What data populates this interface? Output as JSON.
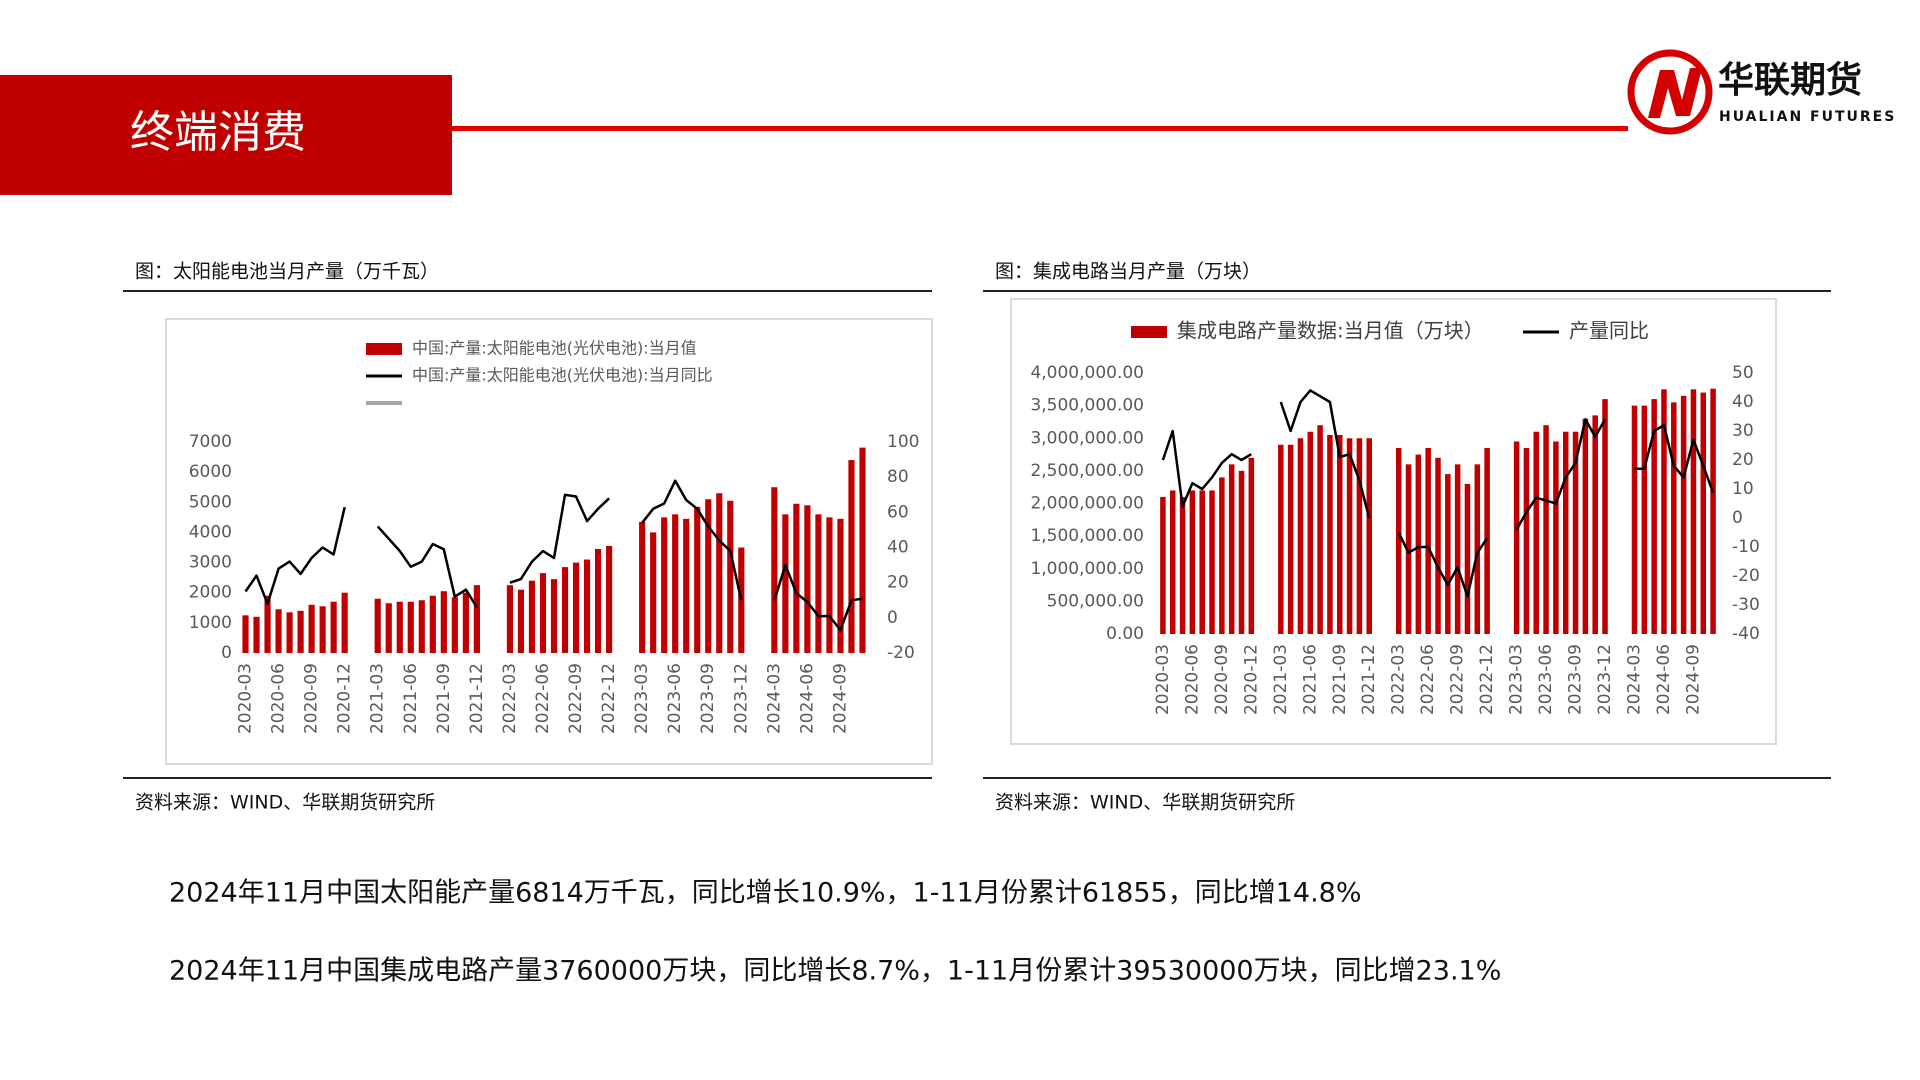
{
  "header": {
    "title": "终端消费",
    "logo_name": "华联期货",
    "logo_sub": "HUALIAN FUTURES"
  },
  "notes": [
    "2024年11月中国太阳能产量6814万千瓦，同比增长10.9%，1-11月份累计61855，同比增14.8%",
    "2024年11月中国集成电路产量3760000万块，同比增长8.7%，1-11月份累计39530000万块，同比增23.1%"
  ],
  "chart_data": [
    {
      "type": "combo",
      "title": "图：太阳能电池当月产量（万千瓦）",
      "source": "资料来源：WIND、华联期货研究所",
      "categories": [
        "2020-03",
        null,
        null,
        "2020-06",
        null,
        null,
        "2020-09",
        null,
        null,
        "2020-12",
        null,
        null,
        "2021-03",
        null,
        null,
        "2021-06",
        null,
        null,
        "2021-09",
        null,
        null,
        "2021-12",
        null,
        null,
        "2022-03",
        null,
        null,
        "2022-06",
        null,
        null,
        "2022-09",
        null,
        null,
        "2022-12",
        null,
        null,
        "2023-03",
        null,
        null,
        "2023-06",
        null,
        null,
        "2023-09",
        null,
        null,
        "2023-12",
        null,
        null,
        "2024-03",
        null,
        null,
        "2024-06",
        null,
        null,
        "2024-09",
        null,
        null
      ],
      "series": [
        {
          "name": "中国:产量:太阳能电池(光伏电池):当月值",
          "color": "#c00000",
          "type": "bar",
          "values": [
            1250,
            1200,
            1900,
            1450,
            1350,
            1400,
            1600,
            1550,
            1700,
            2000,
            null,
            null,
            1800,
            1650,
            1700,
            1700,
            1750,
            1900,
            2050,
            1850,
            2000,
            2250,
            null,
            null,
            2250,
            2100,
            2400,
            2650,
            2450,
            2850,
            3000,
            3100,
            3450,
            3550,
            null,
            null,
            4350,
            4000,
            4500,
            4600,
            4450,
            4850,
            5100,
            5300,
            5050,
            3500,
            null,
            null,
            5500,
            4600,
            4950,
            4900,
            4600,
            4500,
            4450,
            6400,
            6814
          ]
        },
        {
          "name": "中国:产量:太阳能电池(光伏电池):当月同比",
          "color": "#000000",
          "type": "line",
          "axis": "y2",
          "values": [
            15,
            24,
            8,
            28,
            32,
            25,
            34,
            40,
            36,
            63,
            null,
            null,
            52,
            45,
            38,
            29,
            32,
            42,
            39,
            12,
            16,
            6,
            null,
            null,
            20,
            22,
            32,
            38,
            34,
            70,
            69,
            55,
            62,
            68,
            null,
            null,
            54,
            62,
            65,
            78,
            67,
            62,
            52,
            44,
            38,
            10,
            null,
            null,
            10,
            30,
            14,
            9,
            1,
            1,
            -7,
            10,
            10.9
          ]
        }
      ],
      "ylim": [
        0,
        7000
      ],
      "yticks": [
        0,
        1000,
        2000,
        3000,
        4000,
        5000,
        6000,
        7000
      ],
      "y2lim": [
        -20,
        100
      ],
      "y2ticks": [
        -20,
        0,
        20,
        40,
        60,
        80,
        100
      ],
      "legend": "top-left-vertical"
    },
    {
      "type": "combo",
      "title": "图：集成电路当月产量（万块）",
      "source": "资料来源：WIND、华联期货研究所",
      "categories": [
        "2020-03",
        null,
        null,
        "2020-06",
        null,
        null,
        "2020-09",
        null,
        null,
        "2020-12",
        null,
        null,
        "2021-03",
        null,
        null,
        "2021-06",
        null,
        null,
        "2021-09",
        null,
        null,
        "2021-12",
        null,
        null,
        "2022-03",
        null,
        null,
        "2022-06",
        null,
        null,
        "2022-09",
        null,
        null,
        "2022-12",
        null,
        null,
        "2023-03",
        null,
        null,
        "2023-06",
        null,
        null,
        "2023-09",
        null,
        null,
        "2023-12",
        null,
        null,
        "2024-03",
        null,
        null,
        "2024-06",
        null,
        null,
        "2024-09",
        null,
        null
      ],
      "series": [
        {
          "name": "集成电路产量数据:当月值（万块）",
          "color": "#c00000",
          "type": "bar",
          "values": [
            2100000,
            2200000,
            2100000,
            2200000,
            2200000,
            2200000,
            2400000,
            2600000,
            2500000,
            2700000,
            null,
            null,
            2900000,
            2900000,
            3000000,
            3100000,
            3200000,
            3050000,
            3050000,
            3000000,
            3000000,
            3000000,
            null,
            null,
            2850000,
            2600000,
            2750000,
            2850000,
            2700000,
            2450000,
            2600000,
            2300000,
            2600000,
            2850000,
            null,
            null,
            2950000,
            2850000,
            3100000,
            3200000,
            2950000,
            3100000,
            3100000,
            3300000,
            3350000,
            3600000,
            null,
            null,
            3500000,
            3500000,
            3600000,
            3750000,
            3550000,
            3650000,
            3750000,
            3700000,
            3760000
          ]
        },
        {
          "name": "产量同比",
          "color": "#000000",
          "type": "line",
          "axis": "y2",
          "values": [
            20,
            30,
            4,
            12,
            10,
            14,
            19,
            22,
            20,
            22,
            null,
            null,
            40,
            30,
            40,
            44,
            42,
            40,
            21,
            22,
            13,
            0,
            null,
            null,
            -5,
            -12,
            -10,
            -10,
            -17,
            -23,
            -17,
            -27,
            -12,
            -7,
            null,
            null,
            -4,
            2,
            7,
            6,
            5,
            14,
            19,
            34,
            28,
            34,
            null,
            null,
            17,
            17,
            30,
            32,
            18,
            14,
            27,
            18,
            8.7
          ]
        }
      ],
      "ylim": [
        0,
        4000000
      ],
      "yticks": [
        {
          "value": 0,
          "label": "0.00"
        },
        {
          "value": 500000,
          "label": "500,000.00"
        },
        {
          "value": 1000000,
          "label": "1,000,000.00"
        },
        {
          "value": 1500000,
          "label": "1,500,000.00"
        },
        {
          "value": 2000000,
          "label": "2,000,000.00"
        },
        {
          "value": 2500000,
          "label": "2,500,000.00"
        },
        {
          "value": 3000000,
          "label": "3,000,000.00"
        },
        {
          "value": 3500000,
          "label": "3,500,000.00"
        },
        {
          "value": 4000000,
          "label": "4,000,000.00"
        }
      ],
      "y2lim": [
        -40,
        50
      ],
      "y2ticks": [
        -40,
        -30,
        -20,
        -10,
        0,
        10,
        20,
        30,
        40,
        50
      ],
      "legend": "top-horizontal"
    }
  ]
}
